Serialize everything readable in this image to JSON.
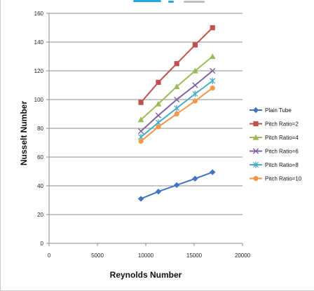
{
  "chart_data": {
    "type": "line",
    "title": "",
    "xlabel": "Reynolds Number",
    "ylabel": "Nusselt Number",
    "xlim": [
      0,
      20000
    ],
    "ylim": [
      0,
      160
    ],
    "xticks": [
      0,
      5000,
      10000,
      15000,
      20000
    ],
    "yticks": [
      0,
      20,
      40,
      60,
      80,
      100,
      120,
      140,
      160
    ],
    "grid": "horizontal",
    "legend": "right",
    "series": [
      {
        "name": "Plain Tube",
        "color": "#4472C4",
        "marker": "diamond",
        "x": [
          9500,
          11300,
          13200,
          15100,
          16900
        ],
        "y": [
          31,
          36,
          40.5,
          45,
          49.5
        ]
      },
      {
        "name": "Pitch Ratio=2",
        "color": "#C0504D",
        "marker": "square",
        "x": [
          9500,
          11300,
          13200,
          15100,
          16900
        ],
        "y": [
          98,
          112,
          125,
          138,
          150
        ]
      },
      {
        "name": "Pitch Ratio=4",
        "color": "#9BBB59",
        "marker": "triangle",
        "x": [
          9500,
          11300,
          13200,
          15100,
          16900
        ],
        "y": [
          86,
          97,
          109,
          120,
          130
        ]
      },
      {
        "name": "Pitch Ratio=6",
        "color": "#8064A2",
        "marker": "x",
        "x": [
          9500,
          11300,
          13200,
          15100,
          16900
        ],
        "y": [
          78,
          89,
          100,
          110,
          120
        ]
      },
      {
        "name": "Pitch Ratio=8",
        "color": "#4BACC6",
        "marker": "star",
        "x": [
          9500,
          11300,
          13200,
          15100,
          16900
        ],
        "y": [
          74,
          84,
          94,
          104,
          113
        ]
      },
      {
        "name": "Pitch Ratio=10",
        "color": "#F79646",
        "marker": "circle",
        "x": [
          9500,
          11300,
          13200,
          15100,
          16900
        ],
        "y": [
          71,
          81,
          90,
          99,
          108
        ]
      }
    ]
  }
}
